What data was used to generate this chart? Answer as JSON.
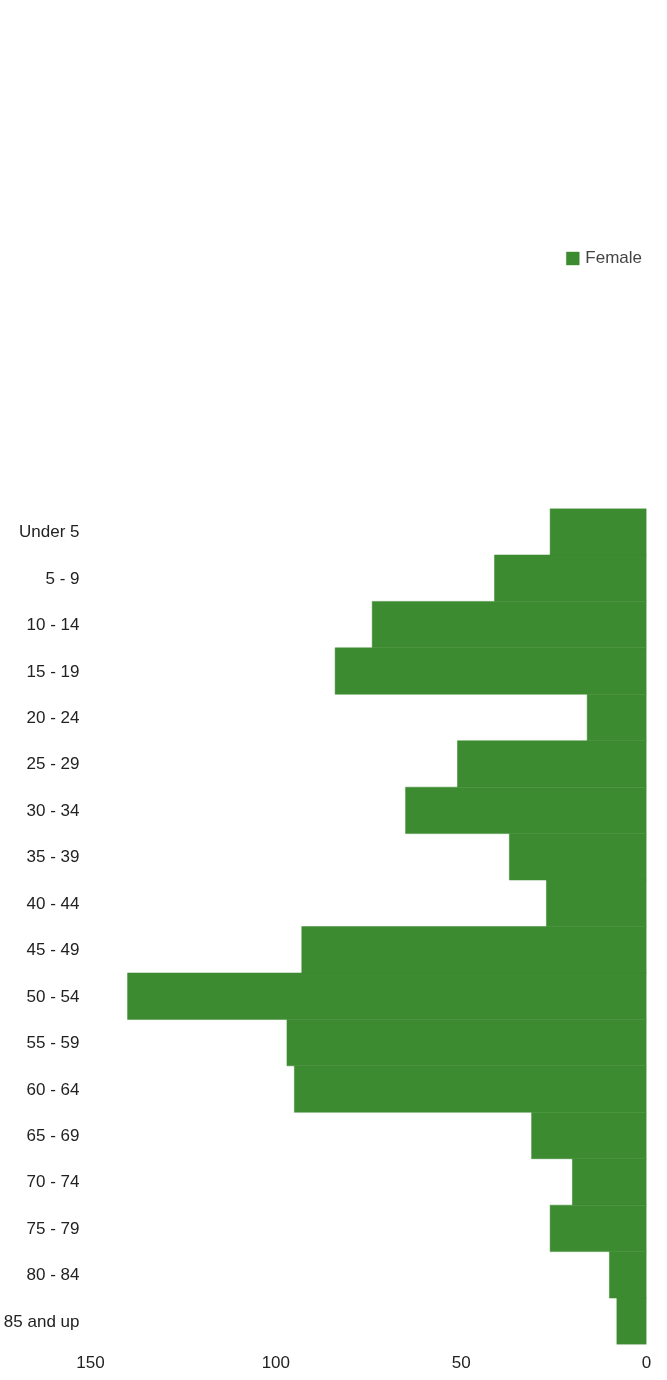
{
  "chart_data": {
    "type": "bar",
    "orientation": "horizontal",
    "categories": [
      "Under 5",
      "5 - 9",
      "10 - 14",
      "15 - 19",
      "20 - 24",
      "25 - 29",
      "30 - 34",
      "35 - 39",
      "40 - 44",
      "45 - 49",
      "50 - 54",
      "55 - 59",
      "60 - 64",
      "65 - 69",
      "70 - 74",
      "75 - 79",
      "80 - 84",
      "85 and up"
    ],
    "series": [
      {
        "name": "Female",
        "color": "#3d8b30",
        "values": [
          26,
          41,
          74,
          84,
          16,
          51,
          65,
          37,
          27,
          93,
          140,
          97,
          95,
          31,
          20,
          26,
          10,
          8
        ]
      }
    ],
    "xlim": [
      150,
      0
    ],
    "xticks": [
      150,
      100,
      50,
      0
    ],
    "grid": false,
    "legend": "top right"
  }
}
